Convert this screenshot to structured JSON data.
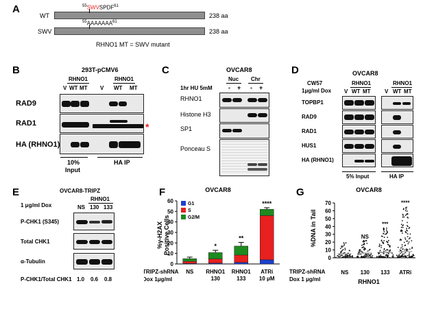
{
  "panelA": {
    "label": "A",
    "wt_label": "WT",
    "swv_label": "SWV",
    "wt_seq_start": "55",
    "wt_seq_motif": "SWV",
    "wt_seq_rest": "SPDF",
    "wt_seq_end": "61",
    "mut_seq_start": "55",
    "mut_seq_motif": "AAAAAAA",
    "mut_seq_end": "61",
    "wt_length": "238 aa",
    "swv_length": "238 aa",
    "caption": "RHNO1 MT = SWV mutant",
    "motif_color": "#e8201f"
  },
  "panelB": {
    "label": "B",
    "title": "293T-pCMV6",
    "rhno1_group_1": "RHNO1",
    "rhno1_group_2": "RHNO1",
    "lanes": [
      "V",
      "WT",
      "MT",
      "V",
      "WT",
      "MT"
    ],
    "rows": [
      "RAD9",
      "RAD1",
      "HA (RHNO1)"
    ],
    "asterisk": "*",
    "bottom_left_1": "10%",
    "bottom_left_2": "Input",
    "bottom_right": "HA IP"
  },
  "panelC": {
    "label": "C",
    "title": "OVCAR8",
    "nuc": "Nuc",
    "chr": "Chr",
    "treatment": "1hr HU 5mM",
    "lanes": [
      "-",
      "+",
      "-",
      "+"
    ],
    "rows": [
      "RHNO1",
      "Histone H3",
      "SP1",
      "Ponceau S"
    ]
  },
  "panelD": {
    "label": "D",
    "title": "OVCAR8",
    "cw57": "CW57",
    "dox": "1μg/ml Dox",
    "rhno1_group_1": "RHNO1",
    "rhno1_group_2": "RHNO1",
    "lanes": [
      "V",
      "WT",
      "MT",
      "V",
      "WT",
      "MT"
    ],
    "rows": [
      "TOPBP1",
      "RAD9",
      "RAD1",
      "HUS1",
      "HA (RHNO1)"
    ],
    "bottom_left": "5% Input",
    "bottom_right": "HA IP"
  },
  "panelE": {
    "label": "E",
    "title": "OVCAR8-TRIPZ",
    "dox": "1 μg/ml Dox",
    "rhno1_group": "RHNO1",
    "lanes": [
      "NS",
      "130",
      "133"
    ],
    "rows": [
      "P-CHK1 (S345)",
      "Total CHK1",
      "α-Tubulin"
    ],
    "ratio_label": "P-CHK1/Total CHK1",
    "ratios": [
      "1.0",
      "0.6",
      "0.8"
    ]
  },
  "panelF": {
    "label": "F",
    "title": "OVCAR8",
    "ylabel_1": "%γ-H2AX",
    "ylabel_2": "Positive Cells",
    "row_label_1": "TRIPZ-shRNA",
    "row_label_2": "Dox 1μg/ml",
    "chart_data": {
      "type": "bar",
      "stacked": true,
      "categories": [
        "NS",
        "RHNO1\n130",
        "RHNO1\n133",
        "ATRi\n10 μM"
      ],
      "category_lines": [
        [
          "NS"
        ],
        [
          "RHNO1",
          "130"
        ],
        [
          "RHNO1",
          "133"
        ],
        [
          "ATRi",
          "10 μM"
        ]
      ],
      "series": [
        {
          "name": "G1",
          "color": "#1c3fcf",
          "values": [
            0.5,
            0.8,
            1.5,
            4
          ]
        },
        {
          "name": "S",
          "color": "#e8201f",
          "values": [
            2,
            4,
            7,
            42
          ]
        },
        {
          "name": "G2/M",
          "color": "#1f8a1f",
          "values": [
            2.5,
            6,
            8.5,
            6
          ]
        }
      ],
      "totals": [
        5,
        11,
        17,
        52
      ],
      "errors": [
        1.5,
        2,
        3.5,
        1.5
      ],
      "significance": [
        "",
        "*",
        "**",
        "****"
      ],
      "ylim": [
        0,
        60
      ],
      "yticks": [
        0,
        10,
        20,
        30,
        40,
        50,
        60
      ],
      "legend_position": "top-left"
    }
  },
  "panelG": {
    "label": "G",
    "title": "OVCAR8",
    "ylabel": "%DNA in Tail",
    "row_label_1": "TRIPZ-shRNA",
    "row_label_2": "Dox 1 μg/ml",
    "group_label": "RHNO1",
    "chart_data": {
      "type": "scatter",
      "categories": [
        "NS",
        "130",
        "133",
        "ATRi"
      ],
      "medians": [
        5,
        6,
        7,
        8
      ],
      "maxima": [
        19,
        22,
        38,
        65
      ],
      "significance": [
        "",
        "NS",
        "***",
        "****"
      ],
      "ylim": [
        0,
        70
      ],
      "yticks": [
        0,
        10,
        20,
        30,
        40,
        50,
        60,
        70
      ]
    }
  }
}
